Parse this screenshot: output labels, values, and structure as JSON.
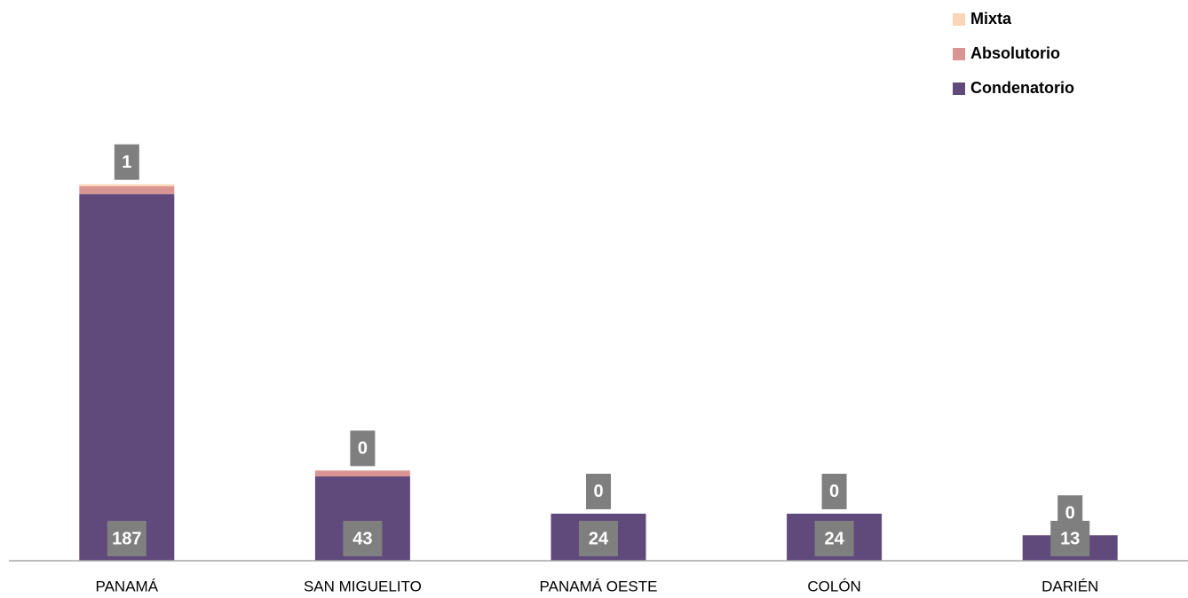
{
  "chart_data": {
    "type": "bar",
    "stacked": true,
    "categories": [
      "PANAMÁ",
      "SAN MIGUELITO",
      "PANAMÁ OESTE",
      "COLÓN",
      "DARIÉN"
    ],
    "series": [
      {
        "name": "Condenatorio",
        "color": "#604a7b",
        "values": [
          187,
          43,
          24,
          24,
          13
        ]
      },
      {
        "name": "Absolutorio",
        "color": "#d99594",
        "values": [
          4,
          3,
          0,
          0,
          0
        ]
      },
      {
        "name": "Mixta",
        "color": "#fbd5b5",
        "values": [
          1,
          0,
          0,
          0,
          0
        ]
      }
    ]
  }
}
